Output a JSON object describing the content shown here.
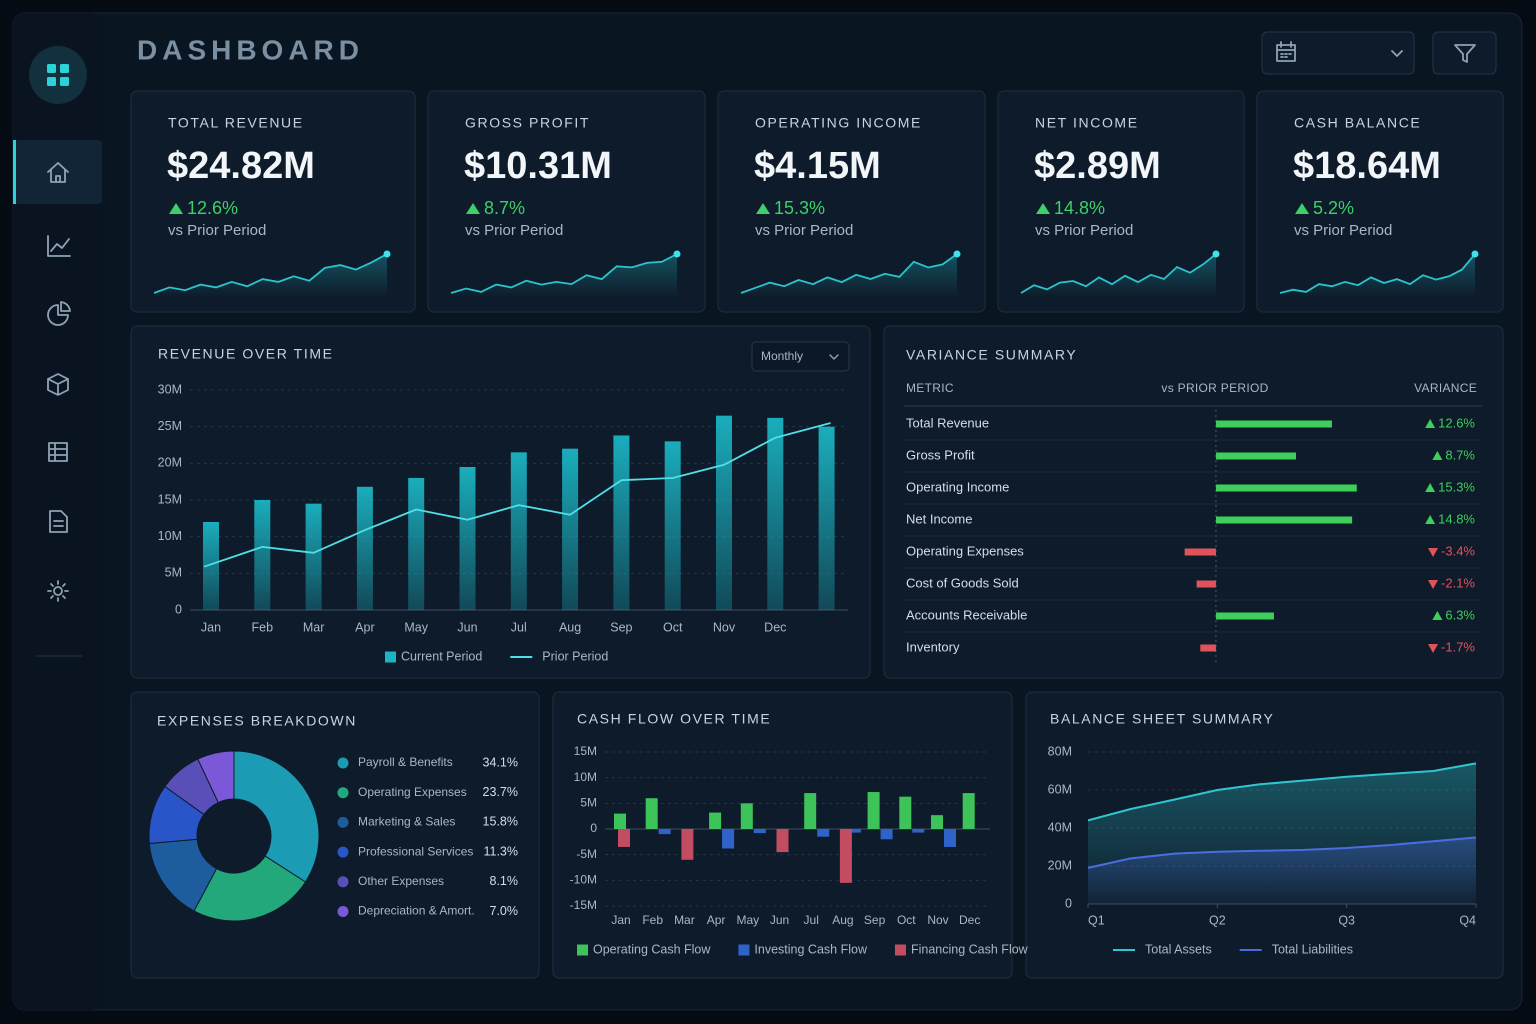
{
  "header": {
    "title": "DASHBOARD"
  },
  "kpis": [
    {
      "label": "TOTAL REVENUE",
      "value": "$24.82M",
      "change": "12.6%",
      "note": "vs Prior Period",
      "sparkline": [
        3,
        4,
        3.5,
        4.5,
        4,
        5,
        4.2,
        5.5,
        5,
        6,
        5.2,
        7.5,
        8,
        7.2,
        8.5,
        10
      ]
    },
    {
      "label": "GROSS PROFIT",
      "value": "$10.31M",
      "change": "8.7%",
      "note": "vs Prior Period",
      "sparkline": [
        3,
        3.8,
        3.2,
        4.5,
        4,
        5.2,
        4.5,
        5,
        4.6,
        6.2,
        5.5,
        7.8,
        7.6,
        8.4,
        8.6,
        10
      ]
    },
    {
      "label": "OPERATING INCOME",
      "value": "$4.15M",
      "change": "15.3%",
      "note": "vs Prior Period",
      "sparkline": [
        2.5,
        3.5,
        4.5,
        3.8,
        5,
        4.2,
        5.5,
        4.6,
        6,
        5.2,
        6.2,
        5.6,
        8.5,
        7.4,
        8,
        10
      ]
    },
    {
      "label": "NET INCOME",
      "value": "$2.89M",
      "change": "14.8%",
      "note": "vs Prior Period",
      "sparkline": [
        2.5,
        4,
        3.2,
        4.5,
        4.8,
        3.8,
        5.5,
        4.2,
        5.8,
        4.6,
        6,
        5.2,
        7.5,
        6.4,
        8,
        10
      ]
    },
    {
      "label": "CASH BALANCE",
      "value": "$18.64M",
      "change": "5.2%",
      "note": "vs Prior Period",
      "sparkline": [
        3,
        3.6,
        3.2,
        4.6,
        4.2,
        5,
        4.4,
        5.8,
        4.8,
        5.5,
        4.6,
        6.2,
        5.4,
        6,
        7.2,
        10
      ]
    }
  ],
  "chart_data": [
    {
      "type": "combo",
      "title": "REVENUE OVER TIME",
      "period_selector": "Monthly",
      "categories": [
        "Jan",
        "Feb",
        "Mar",
        "Apr",
        "May",
        "Jun",
        "Jul",
        "Aug",
        "Sep",
        "Oct",
        "Nov",
        "Dec",
        null
      ],
      "series": [
        {
          "name": "Current Period",
          "kind": "bar",
          "color": "#1bb5c4",
          "values": [
            12,
            15,
            14.5,
            16.8,
            18,
            19.5,
            21.5,
            22,
            23.8,
            23,
            26.5,
            26.2,
            25
          ]
        },
        {
          "name": "Prior Period",
          "kind": "line",
          "color": "#4fe0e6",
          "values": [
            5.9,
            8.6,
            7.8,
            10.9,
            13.7,
            12.3,
            14.3,
            13,
            17.7,
            18,
            19.8,
            23.5,
            25.5
          ]
        }
      ],
      "ylim": [
        0,
        30
      ],
      "yticks": [
        0,
        {
          "value": 5,
          "label": "5M"
        },
        {
          "value": 10,
          "label": "10M"
        },
        {
          "value": 15,
          "label": "15M"
        },
        {
          "value": 20,
          "label": "20M"
        },
        {
          "value": 25,
          "label": "25M"
        },
        {
          "value": 30,
          "label": "30M"
        }
      ],
      "grid": true
    },
    {
      "type": "hbar",
      "title": "VARIANCE SUMMARY",
      "columns": [
        "METRIC",
        "vs PRIOR PERIOD",
        "VARIANCE"
      ],
      "categories": [
        "Total Revenue",
        "Gross Profit",
        "Operating Income",
        "Net Income",
        "Operating Expenses",
        "Cost of Goods Sold",
        "Accounts Receivable",
        "Inventory"
      ],
      "values": [
        12.6,
        8.7,
        15.3,
        14.8,
        -3.4,
        -2.1,
        6.3,
        -1.7
      ],
      "value_labels": [
        "12.6%",
        "8.7%",
        "15.3%",
        "14.8%",
        "-3.4%",
        "-2.1%",
        "6.3%",
        "-1.7%"
      ],
      "xlim": [
        -12.6,
        20
      ],
      "positive_color": "#3ecf5a",
      "negative_color": "#e0535a"
    },
    {
      "type": "donut",
      "title": "EXPENSES BREAKDOWN",
      "categories": [
        "Payroll & Benefits",
        "Operating Expenses",
        "Marketing & Sales",
        "Professional Services",
        "Other Expenses",
        "Depreciation & Amort."
      ],
      "values": [
        34.1,
        23.7,
        15.8,
        11.3,
        8.1,
        7.0
      ],
      "value_labels": [
        "34.1%",
        "23.7%",
        "15.8%",
        "11.3%",
        "8.1%",
        "7.0%"
      ],
      "colors": [
        "#1c9cb4",
        "#23a87c",
        "#1d5d9e",
        "#2a55c8",
        "#5a4fb8",
        "#7b58d8"
      ]
    },
    {
      "type": "bar",
      "title": "CASH FLOW OVER TIME",
      "categories": [
        "Jan",
        "Feb",
        "Mar",
        "Apr",
        "May",
        "Jun",
        "Jul",
        "Aug",
        "Sep",
        "Oct",
        "Nov",
        "Dec"
      ],
      "series": [
        {
          "name": "Operating Cash Flow",
          "color": "#3ec25a",
          "values": [
            3,
            6,
            null,
            3.2,
            5,
            null,
            7,
            null,
            7.2,
            6.3,
            2.7,
            7
          ]
        },
        {
          "name": "Investing Cash Flow",
          "color": "#2f63c9",
          "values": [
            null,
            -1,
            null,
            -3.8,
            -0.8,
            null,
            -1.5,
            -0.7,
            -2,
            -0.7,
            -3.5,
            null
          ]
        },
        {
          "name": "Financing Cash Flow",
          "color": "#c24d62",
          "values": [
            -3.5,
            null,
            -6,
            null,
            null,
            -4.5,
            null,
            -10.5,
            null,
            null,
            null,
            null
          ]
        }
      ],
      "ylim": [
        -15,
        15
      ],
      "yticks": [
        {
          "value": -15,
          "label": "-15M"
        },
        {
          "value": -10,
          "label": "-10M"
        },
        {
          "value": -5,
          "label": "-5M"
        },
        0,
        {
          "value": 5,
          "label": "5M"
        },
        {
          "value": 10,
          "label": "10M"
        },
        {
          "value": 15,
          "label": "15M"
        }
      ],
      "grid": true
    },
    {
      "type": "area",
      "title": "BALANCE SHEET SUMMARY",
      "x": [
        1,
        1.33,
        1.67,
        2,
        2.33,
        2.67,
        3,
        3.33,
        3.67,
        4
      ],
      "series": [
        {
          "name": "Total Assets",
          "color": "#2fc6d0",
          "values": [
            44,
            50,
            55,
            60,
            63,
            65,
            67,
            68.5,
            70,
            74
          ]
        },
        {
          "name": "Total Liabilities",
          "color": "#4a6de0",
          "values": [
            19,
            24,
            26.5,
            27.5,
            28,
            28.5,
            29.5,
            31,
            33,
            35
          ]
        }
      ],
      "xlim": [
        1,
        4
      ],
      "xticks": [
        {
          "value": 1,
          "label": "Q1"
        },
        {
          "value": 2,
          "label": "Q2"
        },
        {
          "value": 3,
          "label": "Q3"
        },
        {
          "value": 4,
          "label": "Q4"
        }
      ],
      "ylim": [
        0,
        80
      ],
      "yticks": [
        0,
        {
          "value": 20,
          "label": "20M"
        },
        {
          "value": 40,
          "label": "40M"
        },
        {
          "value": 60,
          "label": "60M"
        },
        {
          "value": 80,
          "label": "80M"
        }
      ],
      "grid": true
    }
  ]
}
